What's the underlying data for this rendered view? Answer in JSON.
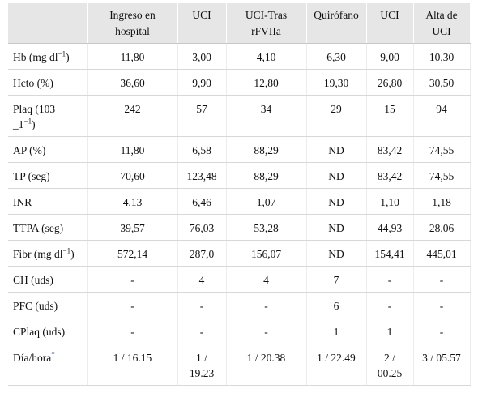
{
  "table": {
    "columns": [
      [
        "Ingreso en",
        "hospital"
      ],
      [
        "UCI"
      ],
      [
        "UCI-Tras",
        "rFVIIa"
      ],
      [
        "Quirófano"
      ],
      [
        "UCI"
      ],
      [
        "Alta de",
        "UCI"
      ]
    ],
    "rows": [
      {
        "label": {
          "text": "Hb (mg dl",
          "sup": "−1",
          "after": ")"
        },
        "cells": [
          "11,80",
          "3,00",
          "4,10",
          "6,30",
          "9,00",
          "10,30"
        ]
      },
      {
        "label": {
          "text": "Hcto (%)"
        },
        "cells": [
          "36,60",
          "9,90",
          "12,80",
          "19,30",
          "26,80",
          "30,50"
        ]
      },
      {
        "label": {
          "text": "Plaq (103 _1",
          "sup": "−1",
          "after": ")"
        },
        "cells": [
          "242",
          "57",
          "34",
          "29",
          "15",
          "94"
        ]
      },
      {
        "label": {
          "text": "AP (%)"
        },
        "cells": [
          "11,80",
          "6,58",
          "88,29",
          "ND",
          "83,42",
          "74,55"
        ]
      },
      {
        "label": {
          "text": "TP (seg)"
        },
        "cells": [
          "70,60",
          "123,48",
          "88,29",
          "ND",
          "83,42",
          "74,55"
        ]
      },
      {
        "label": {
          "text": "INR"
        },
        "cells": [
          "4,13",
          "6,46",
          "1,07",
          "ND",
          "1,10",
          "1,18"
        ]
      },
      {
        "label": {
          "text": "TTPA (seg)"
        },
        "cells": [
          "39,57",
          "76,03",
          "53,28",
          "ND",
          "44,93",
          "28,06"
        ]
      },
      {
        "label": {
          "text": "Fibr (mg dl",
          "sup": "−1",
          "after": ")"
        },
        "cells": [
          "572,14",
          "287,0",
          "156,07",
          "ND",
          "154,41",
          "445,01"
        ]
      },
      {
        "label": {
          "text": "CH (uds)"
        },
        "cells": [
          "-",
          "4",
          "4",
          "7",
          "-",
          "-"
        ]
      },
      {
        "label": {
          "text": "PFC (uds)"
        },
        "cells": [
          "-",
          "-",
          "-",
          "6",
          "-",
          "-"
        ]
      },
      {
        "label": {
          "text": "CPlaq (uds)"
        },
        "cells": [
          "-",
          "-",
          "-",
          "1",
          "1",
          "-"
        ]
      },
      {
        "label": {
          "text": "Día/hora",
          "sup": "*"
        },
        "cells": [
          "1 / 16.15",
          "1 / 19.23",
          "1 / 20.38",
          "1 / 22.49",
          "2 / 00.25",
          "3 / 05.57"
        ]
      }
    ]
  }
}
